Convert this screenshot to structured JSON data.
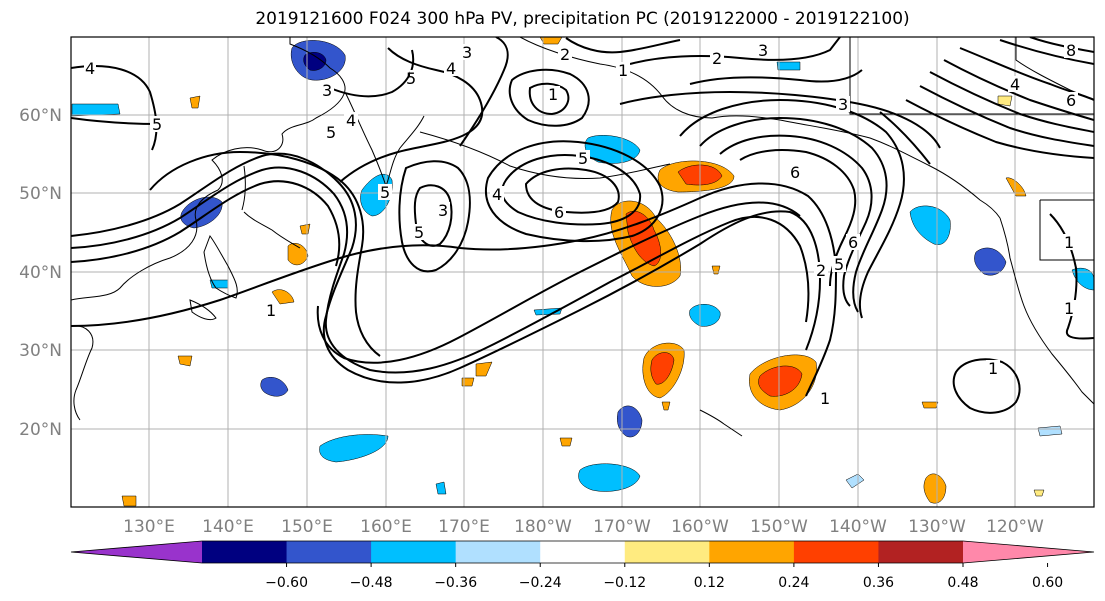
{
  "title": "2019121600 F024 300 hPa PV, precipitation PC (2019122000 - 2019122100)",
  "latitude_labels": [
    "60°N",
    "50°N",
    "40°N",
    "30°N",
    "20°N"
  ],
  "longitude_labels": [
    "130°E",
    "140°E",
    "150°E",
    "160°E",
    "170°E",
    "180°W",
    "170°W",
    "160°W",
    "150°W",
    "140°W",
    "130°W",
    "120°W"
  ],
  "colorbar": {
    "tick_labels": [
      "−0.60",
      "−0.48",
      "−0.36",
      "−0.24",
      "−0.12",
      "0.12",
      "0.24",
      "0.36",
      "0.48",
      "0.60"
    ],
    "colors": [
      "#9933cc",
      "#000080",
      "#3355cc",
      "#00bfff",
      "#b0e0ff",
      "#ffffff",
      "#ffeb80",
      "#ffa500",
      "#ff4000",
      "#b22222",
      "#ff88aa"
    ]
  },
  "contour_labels": [
    "4",
    "5",
    "3",
    "4",
    "5",
    "3",
    "2",
    "1",
    "3",
    "2",
    "1",
    "8",
    "6",
    "4",
    "3",
    "4",
    "5",
    "5",
    "1",
    "5",
    "4",
    "3",
    "6",
    "6",
    "5",
    "6",
    "5",
    "2",
    "1",
    "1",
    "1",
    "1"
  ],
  "map_colors": {
    "contour": "#000000",
    "grid": "#b0b0b0",
    "coast": "#000000",
    "label": "#808080"
  }
}
